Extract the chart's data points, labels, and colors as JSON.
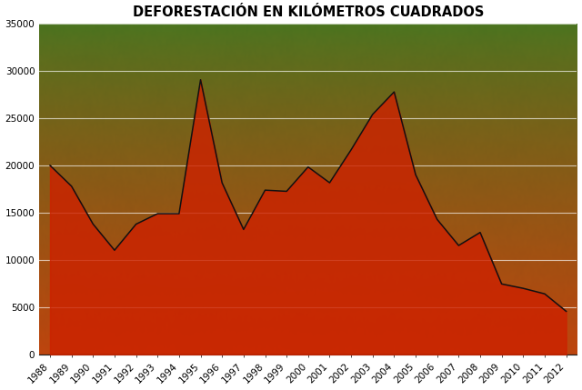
{
  "title": "DEFORESTACIÓN EN KILÓMETROS CUADRADOS",
  "years": [
    1988,
    1989,
    1990,
    1991,
    1992,
    1993,
    1994,
    1995,
    1996,
    1997,
    1998,
    1999,
    2000,
    2001,
    2002,
    2003,
    2004,
    2005,
    2006,
    2007,
    2008,
    2009,
    2010,
    2011,
    2012
  ],
  "values": [
    20000,
    17800,
    13800,
    11030,
    13786,
    14896,
    14896,
    29059,
    18161,
    13227,
    17383,
    17259,
    19836,
    18165,
    21651,
    25396,
    27772,
    19014,
    14286,
    11532,
    12911,
    7464,
    7000,
    6418,
    4571
  ],
  "fill_color": "#CC2200",
  "line_color": "#111111",
  "fill_alpha": 0.82,
  "ylim": [
    0,
    35000
  ],
  "yticks": [
    0,
    5000,
    10000,
    15000,
    20000,
    25000,
    30000,
    35000
  ],
  "grid_color": "#ffffff",
  "grid_alpha": 0.65,
  "grid_linewidth": 0.8,
  "title_fontsize": 10.5,
  "tick_fontsize": 7.5,
  "line_linewidth": 1.1
}
